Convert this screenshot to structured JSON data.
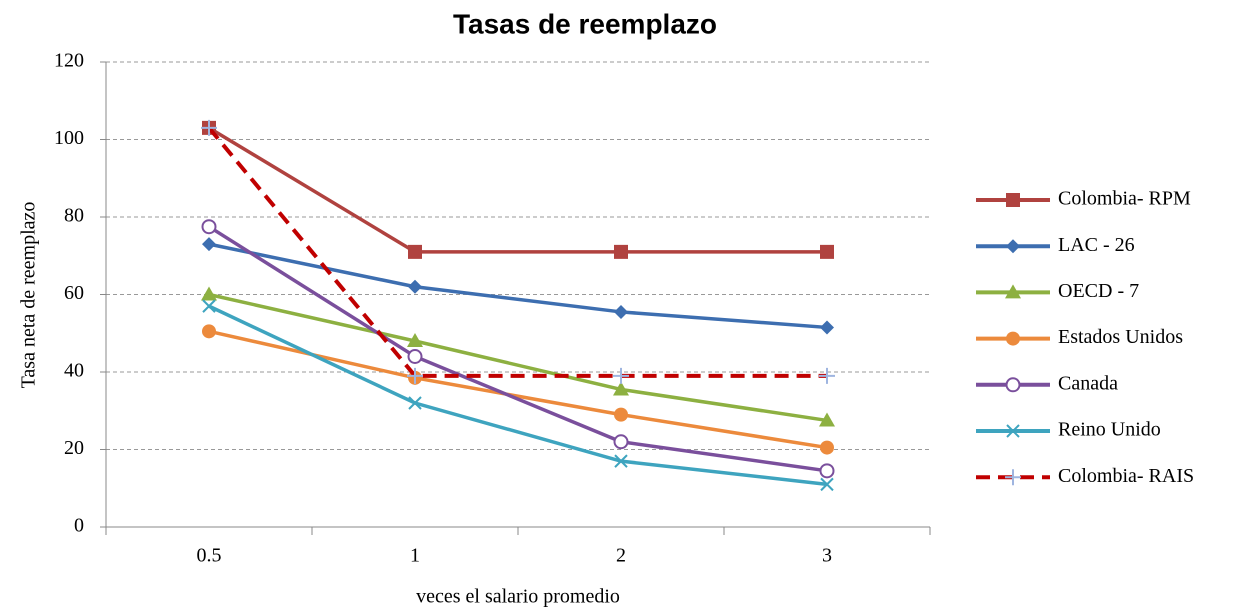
{
  "chart_data": {
    "type": "line",
    "title": "Tasas de reemplazo",
    "x_label": "veces el salario promedio",
    "y_label": "Tasa neta de reemplazo",
    "categories": [
      "0.5",
      "1",
      "2",
      "3"
    ],
    "ylim": [
      0,
      120
    ],
    "yticks": [
      0,
      20,
      40,
      60,
      80,
      100,
      120
    ],
    "grid": true,
    "legend": "right",
    "series": [
      {
        "name": "Colombia- RPM",
        "color": "#b0423f",
        "marker": "square",
        "values": [
          103,
          71,
          71,
          71
        ]
      },
      {
        "name": "LAC - 26",
        "color": "#3d6eb0",
        "marker": "diamond",
        "values": [
          73,
          62,
          55.5,
          51.5
        ]
      },
      {
        "name": "OECD - 7",
        "color": "#8db041",
        "marker": "triangle",
        "values": [
          60,
          48,
          35.5,
          27.5
        ]
      },
      {
        "name": "Estados Unidos",
        "color": "#ec8a3c",
        "marker": "circle",
        "values": [
          50.5,
          38.5,
          29,
          20.5
        ]
      },
      {
        "name": "Canada",
        "color": "#7a4f9c",
        "marker": "open-circle",
        "values": [
          77.5,
          44,
          22,
          14.5
        ]
      },
      {
        "name": "Reino Unido",
        "color": "#3ea4bf",
        "marker": "x",
        "values": [
          57,
          32,
          17,
          11
        ]
      },
      {
        "name": "Colombia- RAIS",
        "color": "#c00000",
        "marker": "plus",
        "marker_color": "#9fb5e0",
        "dashed": true,
        "values": [
          103,
          39,
          39,
          39
        ]
      }
    ]
  }
}
